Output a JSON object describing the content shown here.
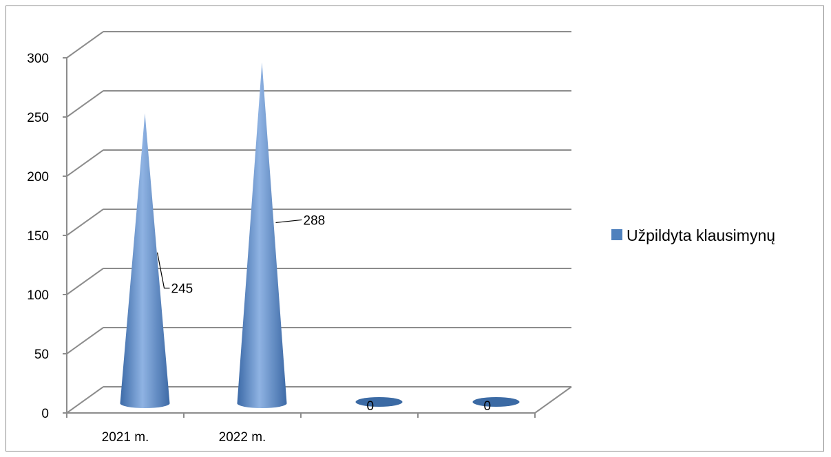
{
  "chart_data": {
    "type": "bar",
    "style": "3d-cone",
    "categories": [
      "2021 m.",
      "2022 m.",
      "",
      ""
    ],
    "series": [
      {
        "name": "Užpildyta klausimynų",
        "values": [
          245,
          288,
          0,
          0
        ]
      }
    ],
    "data_labels": [
      "245",
      "288",
      "0",
      "0"
    ],
    "y_ticks": [
      "0",
      "50",
      "100",
      "150",
      "200",
      "250",
      "300"
    ],
    "ylim": [
      0,
      300
    ],
    "grid": true,
    "legend_position": "right",
    "colors": {
      "series": "#4f81bd",
      "grid": "#8c8c8c",
      "frame": "#8c8c8c"
    }
  }
}
